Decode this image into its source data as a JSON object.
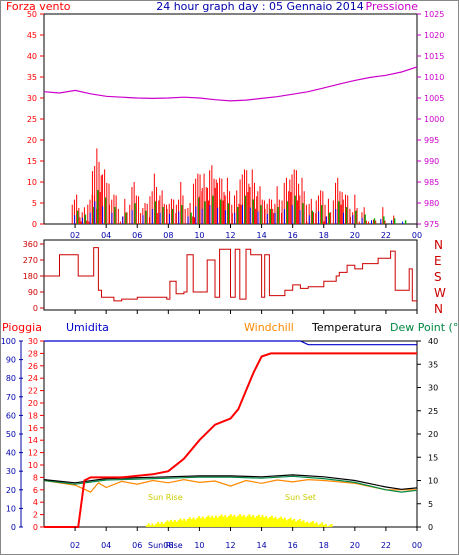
{
  "title": "24 hour graph day : 05 Gennaio 2014",
  "colors": {
    "wind": "#ff0000",
    "pressure": "#cc00cc",
    "direction": "#cc0000",
    "rain": "#ff0000",
    "humidity": "#0000cc",
    "windchill": "#ff8800",
    "temperature": "#000000",
    "dewpoint": "#008844",
    "sun": "#ffff00",
    "axisBlue": "#0000aa",
    "gust_alt": "#0000ff",
    "wind_alt": "#00aa00"
  },
  "x_ticks": [
    "02",
    "04",
    "06",
    "08",
    "10",
    "12",
    "14",
    "16",
    "18",
    "20",
    "22",
    "00"
  ],
  "chart_data": [
    {
      "type": "line",
      "panel": "wind-pressure",
      "left_label": "Forza vento",
      "right_label": "Pressione",
      "left_ticks": [
        "0",
        "5",
        "10",
        "15",
        "20",
        "25",
        "30",
        "35",
        "40",
        "45",
        "50"
      ],
      "right_ticks": [
        "975",
        "980",
        "985",
        "990",
        "995",
        "1000",
        "1005",
        "1010",
        "1015",
        "1020",
        "1025"
      ],
      "ylim_left": [
        0,
        50
      ],
      "ylim_right": [
        975,
        1025
      ],
      "series": [
        {
          "name": "Pressione",
          "axis": "right",
          "x": [
            0,
            1,
            2,
            3,
            4,
            5,
            6,
            7,
            8,
            9,
            10,
            11,
            12,
            13,
            14,
            15,
            16,
            17,
            18,
            19,
            20,
            21,
            22,
            23,
            24
          ],
          "values": [
            1006.5,
            1006.2,
            1006.8,
            1006,
            1005.4,
            1005.2,
            1005,
            1004.9,
            1005,
            1005.2,
            1005,
            1004.6,
            1004.3,
            1004.5,
            1004.9,
            1005.3,
            1005.9,
            1006.5,
            1007.4,
            1008.3,
            1009.2,
            1009.9,
            1010.4,
            1011.2,
            1012.4
          ]
        }
      ],
      "wind_peaks": {
        "x": [
          2.1,
          2.6,
          3.1,
          3.4,
          3.9,
          4.5,
          5.2,
          5.8,
          6.5,
          7.1,
          7.6,
          8.2,
          8.8,
          9.4,
          9.9,
          10.3,
          10.8,
          11.3,
          11.8,
          12.4,
          12.9,
          13.4,
          13.9,
          14.5,
          15.0,
          15.6,
          16.1,
          16.6,
          17.2,
          17.8,
          18.3,
          18.9,
          19.4,
          20.0,
          20.6,
          21.2,
          21.8,
          22.5,
          23.2
        ],
        "values": [
          7,
          5,
          9,
          18,
          14,
          9,
          6,
          11,
          7,
          12,
          9,
          8,
          10,
          6,
          14,
          12,
          15,
          13,
          11,
          9,
          15,
          13,
          10,
          8,
          9,
          12,
          15,
          11,
          7,
          10,
          6,
          12,
          9,
          7,
          5,
          3,
          4,
          3,
          2
        ]
      }
    },
    {
      "type": "line",
      "panel": "wind-direction",
      "left_ticks": [
        "0",
        "90",
        "180",
        "270",
        "360"
      ],
      "right_ticks": [
        "N",
        "W",
        "S",
        "E",
        "N"
      ],
      "ylim": [
        0,
        360
      ],
      "series": [
        {
          "name": "Direzione",
          "x": [
            0,
            0.8,
            1.0,
            2.0,
            2.2,
            3.0,
            3.2,
            3.5,
            3.7,
            4.5,
            5.0,
            6.0,
            7.0,
            7.9,
            8.1,
            8.5,
            9.0,
            9.2,
            9.6,
            10.1,
            10.5,
            11.0,
            11.3,
            11.5,
            12.0,
            12.3,
            12.6,
            13.0,
            13.3,
            13.6,
            14.0,
            14.2,
            14.5,
            15.0,
            15.5,
            16.0,
            16.5,
            17.0,
            18.0,
            18.8,
            19.0,
            19.5,
            20.0,
            20.5,
            21.0,
            21.5,
            22.0,
            22.3,
            22.6,
            23.0,
            23.5,
            23.7,
            24.0
          ],
          "values": [
            180,
            180,
            300,
            300,
            180,
            180,
            340,
            100,
            60,
            40,
            50,
            60,
            60,
            50,
            150,
            80,
            90,
            300,
            90,
            90,
            270,
            60,
            330,
            330,
            60,
            330,
            50,
            330,
            300,
            300,
            60,
            300,
            70,
            70,
            100,
            130,
            110,
            120,
            150,
            180,
            200,
            240,
            220,
            250,
            250,
            280,
            280,
            320,
            100,
            100,
            220,
            40,
            40
          ]
        }
      ]
    },
    {
      "type": "line",
      "panel": "rain-temp",
      "legend": [
        "Pioggia",
        "Umidita",
        "Windchill",
        "Temperatura",
        "Dew Point (°C"
      ],
      "left_ticks": [
        "0",
        "10",
        "20",
        "30",
        "40",
        "50",
        "60",
        "70",
        "80",
        "90",
        "100"
      ],
      "mid_ticks": [
        "0",
        "2",
        "4",
        "6",
        "8",
        "10",
        "12",
        "14",
        "16",
        "18",
        "20",
        "22",
        "24",
        "26",
        "28",
        "30"
      ],
      "right_ticks": [
        "0",
        "5",
        "10",
        "15",
        "20",
        "25",
        "30",
        "35",
        "40"
      ],
      "ylim_left": [
        0,
        100
      ],
      "ylim_mid": [
        0,
        30
      ],
      "ylim_right": [
        0,
        40
      ],
      "annotations": [
        "Sun Rise",
        "Sun Set",
        "Sun Rise"
      ],
      "series": [
        {
          "name": "Pioggia",
          "axis": "mid",
          "x": [
            0,
            2.2,
            2.6,
            3.0,
            5.0,
            7.0,
            8.0,
            9.0,
            10.0,
            11.0,
            12.0,
            12.5,
            13.0,
            13.5,
            14.0,
            14.6,
            16.0,
            20.0,
            24.0
          ],
          "values": [
            0,
            0,
            7.5,
            8,
            8,
            8.5,
            9,
            11,
            14,
            16.5,
            17.5,
            19,
            22,
            25,
            27.5,
            28,
            28,
            28,
            28
          ]
        },
        {
          "name": "Umidita",
          "axis": "left",
          "x": [
            0,
            16.5,
            17,
            24
          ],
          "values": [
            100,
            100,
            98,
            98
          ]
        },
        {
          "name": "Temperatura",
          "axis": "right",
          "x": [
            0,
            2,
            4,
            6,
            8,
            10,
            12,
            14,
            16,
            18,
            20,
            22,
            23,
            24
          ],
          "values": [
            10.2,
            9.5,
            10.4,
            10.6,
            10.8,
            11,
            11,
            10.8,
            11.2,
            10.8,
            10,
            8.6,
            8.1,
            8.4
          ]
        },
        {
          "name": "Dew Point",
          "axis": "right",
          "x": [
            0,
            2,
            4,
            6,
            8,
            10,
            12,
            14,
            16,
            18,
            20,
            22,
            23,
            24
          ],
          "values": [
            10,
            9.2,
            10.1,
            10.3,
            10.5,
            10.7,
            10.7,
            10.5,
            10.9,
            10.4,
            9.6,
            8,
            7.5,
            7.9
          ]
        },
        {
          "name": "Windchill",
          "axis": "right",
          "x": [
            0,
            2,
            3,
            3.5,
            4,
            5,
            6,
            7,
            8,
            9,
            10,
            11,
            12,
            13,
            14,
            15,
            16,
            17,
            18,
            20,
            22,
            24
          ],
          "values": [
            10,
            9,
            7.5,
            9.5,
            8.5,
            9.8,
            9.2,
            10,
            9.5,
            10.2,
            9.6,
            9.9,
            8.8,
            10,
            9.4,
            10.1,
            9.7,
            10.2,
            10,
            9.4,
            8,
            8
          ]
        }
      ]
    }
  ]
}
